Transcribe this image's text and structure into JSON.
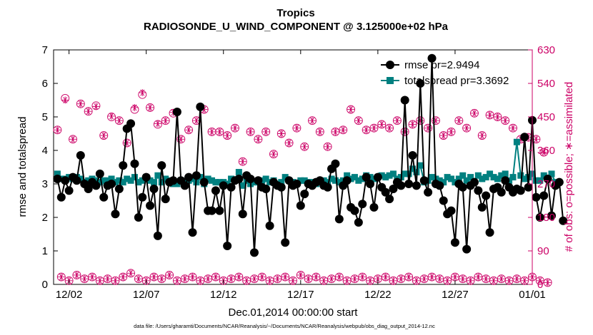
{
  "colors": {
    "rmse": "#000000",
    "spread": "#008080",
    "obs": "#CC0066",
    "axis": "#000000",
    "right_axis": "#CC0066"
  },
  "chart_data": {
    "type": "line",
    "title": "Tropics",
    "subtitle": "RADIOSONDE_U_WIND_COMPONENT @ 3.125000e+02 hPa",
    "xlabel": "Dec.01,2014 00:00:00 start",
    "ylabel": "rmse and totalspread",
    "ylabel_right": "# of obs: o=possible; ∗=assimilated",
    "footer": "data file: /Users/gharamti/Documents/NCAR/Reanalysis/~/Documents/NCAR/Reanalysis/webpub/obs_diag_output_2014-12.nc",
    "xlim": [
      0,
      31
    ],
    "ylim": [
      0,
      7
    ],
    "ylim_right": [
      0,
      630
    ],
    "x_ticks": [
      1,
      6,
      11,
      16,
      21,
      26,
      31
    ],
    "x_tick_labels": [
      "12/02",
      "12/07",
      "12/12",
      "12/17",
      "12/22",
      "12/27",
      "01/01"
    ],
    "y_ticks": [
      0,
      1,
      2,
      3,
      4,
      5,
      6,
      7
    ],
    "y_tick_labels": [
      "0",
      "1",
      "2",
      "3",
      "4",
      "5",
      "6",
      "7"
    ],
    "y_ticks_right": [
      0,
      90,
      180,
      270,
      360,
      450,
      540,
      630
    ],
    "y_tick_labels_right": [
      "0",
      "90",
      "180",
      "270",
      "360",
      "450",
      "540",
      "630"
    ],
    "legend_position": "top-right",
    "x_step": 0.25,
    "series": [
      {
        "name": "rmse pr=2.9494",
        "axis": "left",
        "marker": "circle",
        "values": [
          3.15,
          2.6,
          3.1,
          2.8,
          3.2,
          3.1,
          3.85,
          3.0,
          2.85,
          3.05,
          2.95,
          3.3,
          2.6,
          2.95,
          3.0,
          2.1,
          2.85,
          3.55,
          4.65,
          4.8,
          3.6,
          2.0,
          2.6,
          3.2,
          2.35,
          2.85,
          1.45,
          3.55,
          2.55,
          3.05,
          3.1,
          5.15,
          3.1,
          2.95,
          3.2,
          1.55,
          3.25,
          5.3,
          3.05,
          2.2,
          2.2,
          2.8,
          2.2,
          2.95,
          1.15,
          2.9,
          3.1,
          3.15,
          2.1,
          3.25,
          3.15,
          0.95,
          3.1,
          2.9,
          2.85,
          1.75,
          3.05,
          2.95,
          2.9,
          1.25,
          3.1,
          2.95,
          3.0,
          2.35,
          2.7,
          3.0,
          2.95,
          3.05,
          3.1,
          2.95,
          2.9,
          3.45,
          3.6,
          1.95,
          2.95,
          3.1,
          2.3,
          2.2,
          1.85,
          2.4,
          3.2,
          3.0,
          2.3,
          3.2,
          2.9,
          2.75,
          2.55,
          2.85,
          3.05,
          2.95,
          5.5,
          3.0,
          3.85,
          2.95,
          6.0,
          3.1,
          2.75,
          6.75,
          3.0,
          2.95,
          2.5,
          2.1,
          2.2,
          1.25,
          3.0,
          2.9,
          1.05,
          2.95,
          3.05,
          2.8,
          2.3,
          2.65,
          1.55,
          2.85,
          2.9,
          2.75,
          3.1,
          2.9,
          2.75,
          2.85,
          2.8,
          4.4,
          2.9,
          4.9,
          2.6,
          2.0,
          2.65,
          3.15,
          2.05,
          2.95,
          3.05,
          1.9
        ]
      },
      {
        "name": "totalspread pr=3.3692",
        "axis": "left",
        "marker": "square",
        "values": [
          3.3,
          3.15,
          3.15,
          3.2,
          3.15,
          3.2,
          3.15,
          3.05,
          3.1,
          3.15,
          3.1,
          3.05,
          3.1,
          3.1,
          3.15,
          3.05,
          3.1,
          3.05,
          3.15,
          3.1,
          3.2,
          3.05,
          3.1,
          3.2,
          3.1,
          3.05,
          3.25,
          3.05,
          3.15,
          3.1,
          3.0,
          3.0,
          3.1,
          3.05,
          3.1,
          3.15,
          3.05,
          3.2,
          3.0,
          3.15,
          3.1,
          3.05,
          3.05,
          3.05,
          3.0,
          3.15,
          3.1,
          3.35,
          2.95,
          3.1,
          3.0,
          3.05,
          3.05,
          3.1,
          3.15,
          3.05,
          3.1,
          3.0,
          3.05,
          3.2,
          3.1,
          3.05,
          3.0,
          3.1,
          3.1,
          3.05,
          3.05,
          3.0,
          3.05,
          3.1,
          3.05,
          3.15,
          3.1,
          3.05,
          3.1,
          3.25,
          3.15,
          3.2,
          3.1,
          3.15,
          3.25,
          3.2,
          3.15,
          3.2,
          3.25,
          3.2,
          3.25,
          3.3,
          3.15,
          3.2,
          3.3,
          3.3,
          3.45,
          3.35,
          3.55,
          3.05,
          3.1,
          3.2,
          3.15,
          3.1,
          3.05,
          3.2,
          3.15,
          3.05,
          3.15,
          3.25,
          3.1,
          3.2,
          3.05,
          3.25,
          3.15,
          3.2,
          3.3,
          3.2,
          3.15,
          3.25,
          3.3,
          3.1,
          3.2,
          4.25,
          3.25,
          3.15,
          3.2,
          3.3,
          3.1,
          3.1,
          3.25,
          3.15,
          3.3,
          3.05
        ]
      },
      {
        "name": "obs possible",
        "axis": "right",
        "marker": "o",
        "values": [
          415,
          20,
          500,
          10,
          390,
          25,
          485,
          15,
          465,
          20,
          480,
          10,
          400,
          15,
          450,
          10,
          440,
          20,
          380,
          30,
          470,
          15,
          510,
          10,
          475,
          20,
          430,
          15,
          440,
          25,
          460,
          10,
          390,
          15,
          415,
          20,
          440,
          10,
          470,
          15,
          410,
          20,
          410,
          10,
          400,
          15,
          420,
          20,
          330,
          10,
          410,
          15,
          390,
          20,
          410,
          10,
          350,
          15,
          405,
          20,
          380,
          10,
          420,
          25,
          370,
          15,
          440,
          20,
          410,
          10,
          370,
          15,
          410,
          20,
          415,
          10,
          470,
          15,
          440,
          20,
          415,
          10,
          420,
          15,
          430,
          20,
          420,
          10,
          440,
          15,
          410,
          20,
          430,
          10,
          440,
          15,
          420,
          20,
          440,
          15,
          400,
          10,
          410,
          20,
          440,
          15,
          420,
          10,
          460,
          20,
          400,
          15,
          455,
          10,
          450,
          15,
          440,
          10,
          420,
          15,
          390,
          10,
          395,
          20,
          390,
          10,
          355,
          5
        ]
      },
      {
        "name": "obs assimilated",
        "axis": "right",
        "marker": "asterisk",
        "values": [
          415,
          20,
          495,
          10,
          390,
          25,
          485,
          15,
          465,
          20,
          478,
          10,
          400,
          15,
          452,
          10,
          440,
          20,
          380,
          30,
          475,
          15,
          515,
          10,
          475,
          20,
          432,
          15,
          440,
          25,
          462,
          10,
          390,
          15,
          415,
          20,
          440,
          10,
          470,
          15,
          410,
          20,
          410,
          10,
          400,
          15,
          420,
          20,
          330,
          10,
          410,
          15,
          390,
          20,
          410,
          10,
          350,
          15,
          405,
          20,
          380,
          10,
          420,
          25,
          370,
          15,
          440,
          20,
          410,
          10,
          370,
          15,
          410,
          20,
          415,
          10,
          470,
          15,
          440,
          20,
          415,
          10,
          420,
          15,
          430,
          20,
          420,
          10,
          440,
          15,
          410,
          20,
          430,
          10,
          440,
          15,
          420,
          20,
          440,
          15,
          400,
          10,
          410,
          20,
          440,
          15,
          420,
          10,
          460,
          20,
          400,
          15,
          455,
          10,
          450,
          15,
          440,
          10,
          420,
          15,
          390,
          10,
          395,
          20,
          390,
          10,
          355,
          5
        ]
      }
    ]
  }
}
